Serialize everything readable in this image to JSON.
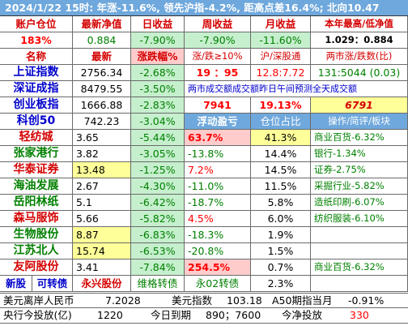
{
  "headline": "2024/1/22  15时: 年涨-11.6%, 领先沪指-4.2%, 距高点差16.4%; 北向10.47",
  "summary": {
    "headers": [
      "账户仓位",
      "最新净值",
      "日收益",
      "周收益",
      "月收益",
      "本年最高/低净值"
    ],
    "values": [
      "183%",
      "0.884",
      "-7.90%",
      "-7.90%",
      "-11.60%",
      "1.029：0.884"
    ]
  },
  "index_header": [
    "名称",
    "最新",
    "涨跌幅%",
    "涨/跌≥10%",
    "沪/深股通",
    "两市涨/跌数(比)"
  ],
  "indices": [
    {
      "name": "上证指数",
      "price": "2756.34",
      "chg": "-2.68%",
      "ratio": "19 ：95",
      "hk": "12.8:7.72",
      "breadth": "131:5044 (0.03)"
    },
    {
      "name": "深证成指",
      "price": "8479.55",
      "chg": "-3.50%",
      "note": "两市成交额成交额昨日午间预测全天成交额"
    },
    {
      "name": "创业板指",
      "price": "1666.88",
      "chg": "-2.83%",
      "turnover": "7941",
      "turn_pct": "19.13%",
      "forecast": "6791"
    },
    {
      "name": "科创50",
      "price": "742.23",
      "chg": "-3.04%",
      "pl_header": "浮动盈亏",
      "pos_header": "仓位占比",
      "op_header": "操作/简评/板块"
    }
  ],
  "holdings": [
    {
      "name": "轻纺城",
      "price": "3.65",
      "chg": "-5.44%",
      "pl": "63.7%",
      "pos": "41.3%",
      "note": "商业百货-6.32%"
    },
    {
      "name": "张家港行",
      "price": "3.82",
      "chg": "-3.05%",
      "pl": "-13.8%",
      "pos": "14.4%",
      "note": "银行-1.34%"
    },
    {
      "name": "华泰证券",
      "price": "13.48",
      "chg": "-1.25%",
      "pl": "7.2%",
      "pos": "14.5%",
      "note": "证券-2.75%"
    },
    {
      "name": "海油发展",
      "price": "2.67",
      "chg": "-4.30%",
      "pl": "-11.0%",
      "pos": "11.5%",
      "note": "采掘行业-5.82%"
    },
    {
      "name": "岳阳林纸",
      "price": "5.1",
      "chg": "-6.42%",
      "pl": "-18.7%",
      "pos": "5.8%",
      "note": "造纸印刷-6.07%"
    },
    {
      "name": "森马服饰",
      "price": "5.66",
      "chg": "-5.82%",
      "pl": "4.5%",
      "pos": "6.0%",
      "note": "纺织服装-6.10%"
    },
    {
      "name": "生物股份",
      "price": "8.87",
      "chg": "-6.83%",
      "pl": "-18.3%",
      "pos": "1.9%",
      "note": ""
    },
    {
      "name": "江苏北人",
      "price": "15.74",
      "chg": "-6.53%",
      "pl": "-20.8%",
      "pos": "1.5%",
      "note": ""
    },
    {
      "name": "友阿股份",
      "price": "3.41",
      "chg": "-7.84%",
      "pl": "254.5%",
      "pos": "0.7%",
      "note": "商业百货-6.32%"
    }
  ],
  "bond_row": {
    "a": "新股",
    "b": "可转债",
    "c": "永兴股份",
    "d": "维格转债",
    "e": "永02转债",
    "f": "2.3%"
  },
  "footer1": {
    "label1": "美元离岸人民币",
    "val1": "7.2028",
    "label2": "美元指数",
    "val2": "103.18",
    "label3": "A50期指当月",
    "val3": "-0.91%"
  },
  "footer2": {
    "label1": "央行今投放(亿)",
    "val1": "1220",
    "label2": "今日到期",
    "val2": "890；7600",
    "label3": "今净投放",
    "val3": "330"
  },
  "colors": {
    "header_blue": "#6fa8dc",
    "title_red": "#d40000",
    "down_green": "#008000",
    "up_red": "#ff0000",
    "yellow_bg": "#ffff99",
    "green_bg": "#c6efce",
    "pink_bg": "#ffcccc"
  }
}
